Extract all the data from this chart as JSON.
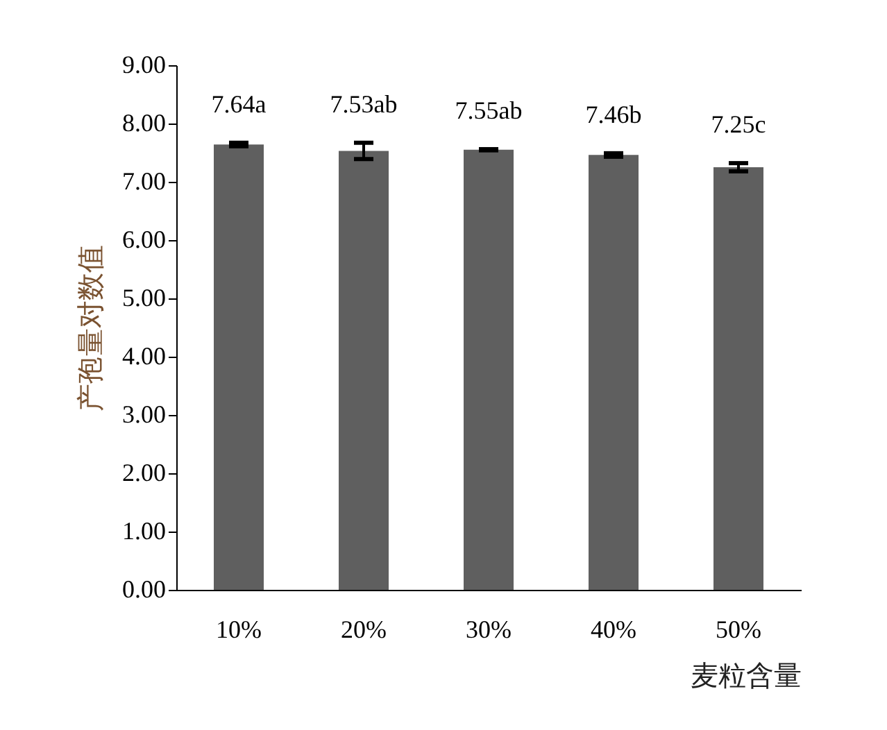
{
  "chart_data": {
    "type": "bar",
    "xlabel": "麦粒含量",
    "ylabel": "产孢量对数值",
    "categories": [
      "10%",
      "20%",
      "30%",
      "40%",
      "50%"
    ],
    "values": [
      7.64,
      7.53,
      7.55,
      7.46,
      7.25
    ],
    "errors": [
      0.03,
      0.14,
      0.01,
      0.03,
      0.07
    ],
    "value_labels": [
      "7.64a",
      "7.53ab",
      "7.55ab",
      "7.46b",
      "7.25c"
    ],
    "color": "#5f5f5f",
    "ylim": [
      0,
      9
    ],
    "yticks": [
      {
        "value": 0,
        "label": "0.00"
      },
      {
        "value": 1,
        "label": "1.00"
      },
      {
        "value": 2,
        "label": "2.00"
      },
      {
        "value": 3,
        "label": "3.00"
      },
      {
        "value": 4,
        "label": "4.00"
      },
      {
        "value": 5,
        "label": "5.00"
      },
      {
        "value": 6,
        "label": "6.00"
      },
      {
        "value": 7,
        "label": "7.00"
      },
      {
        "value": 8,
        "label": "8.00"
      },
      {
        "value": 9,
        "label": "9.00"
      }
    ],
    "grid": false
  }
}
